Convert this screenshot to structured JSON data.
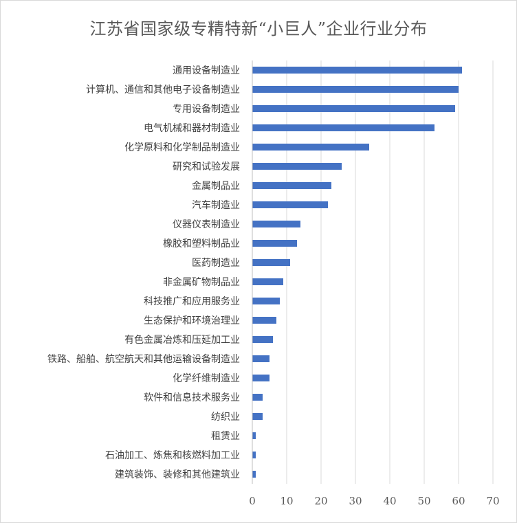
{
  "chart_data": {
    "type": "bar",
    "orientation": "horizontal",
    "title": "江苏省国家级专精特新“小巨人”企业行业分布",
    "xlabel": "",
    "ylabel": "",
    "xlim": [
      0,
      70
    ],
    "xticks": [
      "0",
      "10",
      "20",
      "30",
      "40",
      "50",
      "60",
      "70"
    ],
    "grid": true,
    "legend": "none",
    "bar_color": "#4472C4",
    "categories": [
      "通用设备制造业",
      "计算机、通信和其他电子设备制造业",
      "专用设备制造业",
      "电气机械和器材制造业",
      "化学原料和化学制品制造业",
      "研究和试验发展",
      "金属制品业",
      "汽车制造业",
      "仪器仪表制造业",
      "橡胶和塑料制品业",
      "医药制造业",
      "非金属矿物制品业",
      "科技推广和应用服务业",
      "生态保护和环境治理业",
      "有色金属冶炼和压延加工业",
      "铁路、船舶、航空航天和其他运输设备制造业",
      "化学纤维制造业",
      "软件和信息技术服务业",
      "纺织业",
      "租赁业",
      "石油加工、炼焦和核燃料加工业",
      "建筑装饰、装修和其他建筑业"
    ],
    "values": [
      61,
      60,
      59,
      53,
      34,
      26,
      23,
      22,
      14,
      13,
      11,
      9,
      8,
      7,
      6,
      5,
      5,
      3,
      3,
      1,
      1,
      1
    ]
  }
}
